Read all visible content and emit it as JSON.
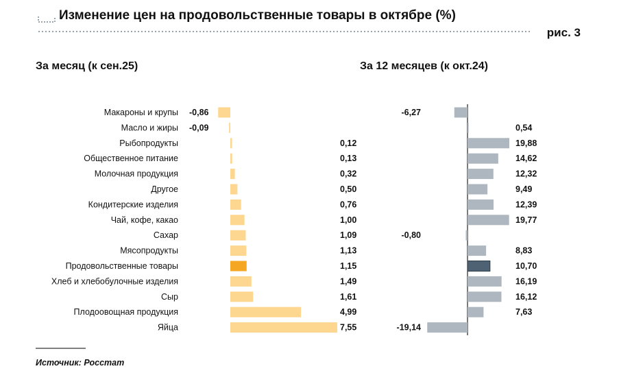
{
  "header": {
    "title": "Изменение цен на продовольственные товары в октябре (%)",
    "figure_label": "рис. 3"
  },
  "source": "Источник: Росстат",
  "colors": {
    "left_bar": "#FDD68F",
    "left_highlight": "#F5A623",
    "right_bar": "#AEB7C0",
    "right_highlight": "#4F6273",
    "axis": "#222222"
  },
  "chart_data": [
    {
      "type": "bar",
      "orientation": "horizontal",
      "title": "За месяц (к сен.25)",
      "categories": [
        "Макароны и крупы",
        "Масло и жиры",
        "Рыбопродукты",
        "Общественное питание",
        "Молочная продукция",
        "Другое",
        "Кондитерские изделия",
        "Чай, кофе, какао",
        "Сахар",
        "Мясопродукты",
        "Продовольственные товары",
        "Хлеб и хлебобулочные изделия",
        "Сыр",
        "Плодоовощная продукция",
        "Яйца"
      ],
      "values": [
        -0.86,
        -0.09,
        0.12,
        0.13,
        0.32,
        0.5,
        0.76,
        1.0,
        1.09,
        1.13,
        1.15,
        1.49,
        1.61,
        4.99,
        7.55
      ],
      "labels": [
        "-0,86",
        "-0,09",
        "0,12",
        "0,13",
        "0,32",
        "0,50",
        "0,76",
        "1,00",
        "1,09",
        "1,13",
        "1,15",
        "1,49",
        "1,61",
        "4,99",
        "7,55"
      ],
      "highlight": "Продовольственные товары",
      "xlim": [
        -1,
        7.55
      ]
    },
    {
      "type": "bar",
      "orientation": "horizontal",
      "title": "За 12 месяцев (к окт.24)",
      "categories": [
        "Макароны и крупы",
        "Масло и жиры",
        "Рыбопродукты",
        "Общественное питание",
        "Молочная продукция",
        "Другое",
        "Кондитерские изделия",
        "Чай, кофе, какао",
        "Сахар",
        "Мясопродукты",
        "Продовольственные товары",
        "Хлеб и хлебобулочные изделия",
        "Сыр",
        "Плодоовощная продукция",
        "Яйца"
      ],
      "values": [
        -6.27,
        0.54,
        19.88,
        14.62,
        12.32,
        9.49,
        12.39,
        19.77,
        -0.8,
        8.83,
        10.7,
        16.19,
        16.12,
        7.63,
        -19.14
      ],
      "labels": [
        "-6,27",
        "0,54",
        "19,88",
        "14,62",
        "12,32",
        "9,49",
        "12,39",
        "19,77",
        "-0,80",
        "8,83",
        "10,70",
        "16,19",
        "16,12",
        "7,63",
        "-19,14"
      ],
      "highlight": "Продовольственные товары",
      "xlim": [
        -19.14,
        19.88
      ]
    }
  ]
}
